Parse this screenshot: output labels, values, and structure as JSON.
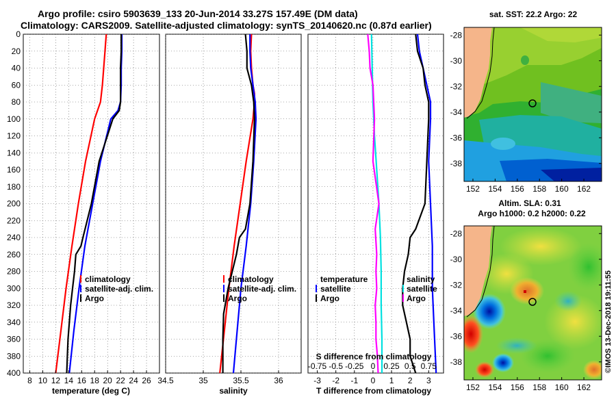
{
  "header": {
    "line1": "Argo profile: csiro 5903639_133 20-Jun-2014 33.27S 157.49E (DM data)",
    "line2": "Climatology: CARS2009. Satellite-adjusted climatology: synTS_20140620.nc (0.87d earlier)"
  },
  "colors": {
    "climatology": "#ff0000",
    "satellite": "#0000ff",
    "argo": "#000000",
    "s_diff": "#ff00ff",
    "t_diff": "#00e0e0",
    "land": "#f5b58a"
  },
  "depth_axis": {
    "ylim": [
      0,
      400
    ],
    "ticks": [
      "0",
      "20",
      "40",
      "60",
      "80",
      "100",
      "120",
      "140",
      "160",
      "180",
      "200",
      "220",
      "240",
      "260",
      "280",
      "300",
      "320",
      "340",
      "360",
      "380",
      "400"
    ]
  },
  "chart_data": [
    {
      "type": "line",
      "id": "temperature",
      "xlabel": "temperature (deg C)",
      "xlim": [
        7,
        28
      ],
      "xticks": [
        "8",
        "10",
        "12",
        "14",
        "16",
        "18",
        "20",
        "22",
        "24",
        "26"
      ],
      "legend": {
        "climatology": "climatology",
        "satellite": "satellite-adj. clim.",
        "argo": "Argo"
      },
      "series": [
        {
          "name": "climatology",
          "color": "#ff0000",
          "depth": [
            0,
            10,
            20,
            40,
            60,
            80,
            100,
            150,
            200,
            250,
            300,
            350,
            400
          ],
          "values": [
            19.8,
            19.7,
            19.6,
            19.4,
            19.2,
            18.9,
            18.0,
            16.6,
            15.5,
            14.5,
            13.6,
            12.8,
            12.0
          ]
        },
        {
          "name": "satellite-adj. clim.",
          "color": "#0000ff",
          "depth": [
            0,
            20,
            40,
            60,
            80,
            90,
            100,
            150,
            200,
            250,
            300,
            350,
            400
          ],
          "values": [
            22.2,
            22.2,
            22.1,
            22.1,
            22.0,
            21.6,
            20.5,
            18.9,
            17.7,
            16.5,
            15.6,
            14.8,
            14.1
          ]
        },
        {
          "name": "Argo",
          "color": "#000000",
          "depth": [
            0,
            20,
            40,
            60,
            80,
            90,
            100,
            150,
            200,
            240,
            250,
            260,
            280,
            300,
            320,
            340,
            360,
            380,
            400
          ],
          "values": [
            22.1,
            22.1,
            22.0,
            22.0,
            22.0,
            21.8,
            20.8,
            18.7,
            17.5,
            16.2,
            15.9,
            15.1,
            14.9,
            14.6,
            14.3,
            14.1,
            13.9,
            13.8,
            13.7
          ]
        }
      ]
    },
    {
      "type": "line",
      "id": "salinity",
      "xlabel": "salinity",
      "xlim": [
        34.5,
        36.3
      ],
      "xticks": [
        "34.5",
        "35",
        "35.5",
        "36"
      ],
      "legend": {
        "climatology": "climatology",
        "satellite": "satellite-adj. clim.",
        "argo": "Argo"
      },
      "series": [
        {
          "name": "climatology",
          "color": "#ff0000",
          "depth": [
            0,
            20,
            40,
            60,
            70,
            80,
            100,
            150,
            200,
            250,
            300,
            350,
            400
          ],
          "values": [
            35.64,
            35.63,
            35.64,
            35.66,
            35.68,
            35.68,
            35.66,
            35.57,
            35.49,
            35.41,
            35.34,
            35.28,
            35.22
          ]
        },
        {
          "name": "satellite-adj. clim.",
          "color": "#0000ff",
          "depth": [
            0,
            20,
            40,
            60,
            80,
            100,
            150,
            200,
            250,
            300,
            350,
            400
          ],
          "values": [
            35.62,
            35.62,
            35.63,
            35.66,
            35.69,
            35.7,
            35.67,
            35.63,
            35.57,
            35.5,
            35.45,
            35.4
          ]
        },
        {
          "name": "Argo",
          "color": "#000000",
          "depth": [
            0,
            20,
            40,
            60,
            80,
            100,
            150,
            200,
            230,
            240,
            260,
            300,
            330,
            360,
            400
          ],
          "values": [
            35.56,
            35.58,
            35.58,
            35.64,
            35.67,
            35.68,
            35.66,
            35.62,
            35.56,
            35.48,
            35.44,
            35.33,
            35.27,
            35.26,
            35.26
          ]
        }
      ]
    },
    {
      "type": "line",
      "id": "differences",
      "xlabel": "T difference from climatology",
      "xlim": [
        -3.5,
        3.8
      ],
      "xticks": [
        "-3",
        "-2",
        "-1",
        "0",
        "1",
        "2",
        "3"
      ],
      "top_label": "S difference from climatology",
      "top_ticks": [
        "-0.75",
        "-0.5",
        "-0.25",
        "0",
        "0.25",
        "0.5",
        "0.75"
      ],
      "legend": {
        "temperature": "temperature",
        "salinity": "salinity",
        "satellite": "satellite",
        "argo": "Argo"
      },
      "series": [
        {
          "name": "T satellite",
          "color": "#0000ff",
          "depth": [
            0,
            20,
            40,
            60,
            80,
            100,
            150,
            200,
            250,
            300,
            350,
            400
          ],
          "values": [
            2.4,
            2.5,
            2.7,
            2.9,
            3.1,
            3.1,
            3.0,
            3.1,
            3.2,
            3.2,
            3.3,
            3.4
          ]
        },
        {
          "name": "T Argo",
          "color": "#000000",
          "depth": [
            0,
            20,
            40,
            60,
            80,
            100,
            150,
            200,
            230,
            240,
            260,
            280,
            300,
            320,
            340,
            360,
            380,
            400
          ],
          "values": [
            2.3,
            2.4,
            2.7,
            2.8,
            3.0,
            3.0,
            2.9,
            2.8,
            2.3,
            2.0,
            1.9,
            1.7,
            1.6,
            1.6,
            1.8,
            2.0,
            2.0,
            2.3
          ]
        },
        {
          "name": "S satellite",
          "color": "#00e0e0",
          "depth": [
            0,
            40,
            80,
            120,
            160,
            200,
            240,
            280,
            320,
            360,
            400
          ],
          "values": [
            -0.02,
            -0.01,
            0.0,
            0.02,
            0.05,
            0.08,
            0.1,
            0.11,
            0.11,
            0.12,
            0.12
          ]
        },
        {
          "name": "S Argo",
          "color": "#ff00ff",
          "depth": [
            0,
            20,
            40,
            60,
            80,
            100,
            150,
            200,
            230,
            260,
            280,
            300,
            320,
            340,
            360,
            380,
            400
          ],
          "values": [
            -0.07,
            -0.05,
            -0.04,
            0.0,
            0.01,
            0.02,
            0.0,
            0.08,
            0.03,
            0.05,
            0.04,
            0.05,
            0.03,
            0.04,
            0.04,
            0.06,
            0.07
          ]
        }
      ]
    }
  ],
  "map_sst": {
    "title": "sat. SST: 22.2 Argo: 22",
    "xticks": [
      "152",
      "154",
      "156",
      "158",
      "160",
      "162"
    ],
    "yticks": [
      "-28",
      "-30",
      "-32",
      "-34",
      "-36",
      "-38"
    ]
  },
  "map_sla": {
    "title1": "Altim. SLA: 0.31",
    "title2": "Argo h1000: 0.2 h2000: 0.22",
    "xticks": [
      "152",
      "154",
      "156",
      "158",
      "160",
      "162"
    ],
    "yticks": [
      "-28",
      "-30",
      "-32",
      "-34",
      "-36",
      "-38"
    ]
  },
  "watermark": "©IMOS 13-Dec-2018 19:11:55"
}
